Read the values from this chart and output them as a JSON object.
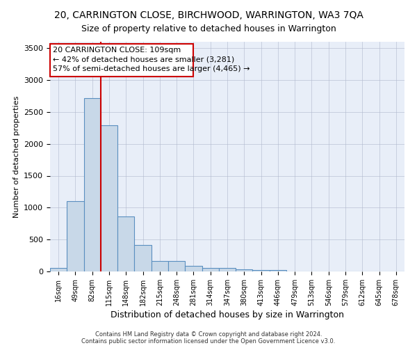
{
  "title": "20, CARRINGTON CLOSE, BIRCHWOOD, WARRINGTON, WA3 7QA",
  "subtitle": "Size of property relative to detached houses in Warrington",
  "xlabel": "Distribution of detached houses by size in Warrington",
  "ylabel": "Number of detached properties",
  "categories": [
    "16sqm",
    "49sqm",
    "82sqm",
    "115sqm",
    "148sqm",
    "182sqm",
    "215sqm",
    "248sqm",
    "281sqm",
    "314sqm",
    "347sqm",
    "380sqm",
    "413sqm",
    "446sqm",
    "479sqm",
    "513sqm",
    "546sqm",
    "579sqm",
    "612sqm",
    "645sqm",
    "678sqm"
  ],
  "values": [
    50,
    1100,
    2720,
    2290,
    860,
    420,
    165,
    165,
    90,
    60,
    55,
    30,
    25,
    20,
    0,
    0,
    0,
    0,
    0,
    0,
    0
  ],
  "bar_color": "#c8d8e8",
  "bar_edge_color": "#5a8fc0",
  "vline_color": "#cc0000",
  "annotation_text": "20 CARRINGTON CLOSE: 109sqm\n← 42% of detached houses are smaller (3,281)\n57% of semi-detached houses are larger (4,465) →",
  "annotation_box_color": "#ffffff",
  "annotation_box_edge": "#cc0000",
  "ylim": [
    0,
    3600
  ],
  "yticks": [
    0,
    500,
    1000,
    1500,
    2000,
    2500,
    3000,
    3500
  ],
  "background_color": "#e8eef8",
  "footer": "Contains HM Land Registry data © Crown copyright and database right 2024.\nContains public sector information licensed under the Open Government Licence v3.0.",
  "title_fontsize": 10,
  "subtitle_fontsize": 9,
  "annotation_fontsize": 8
}
